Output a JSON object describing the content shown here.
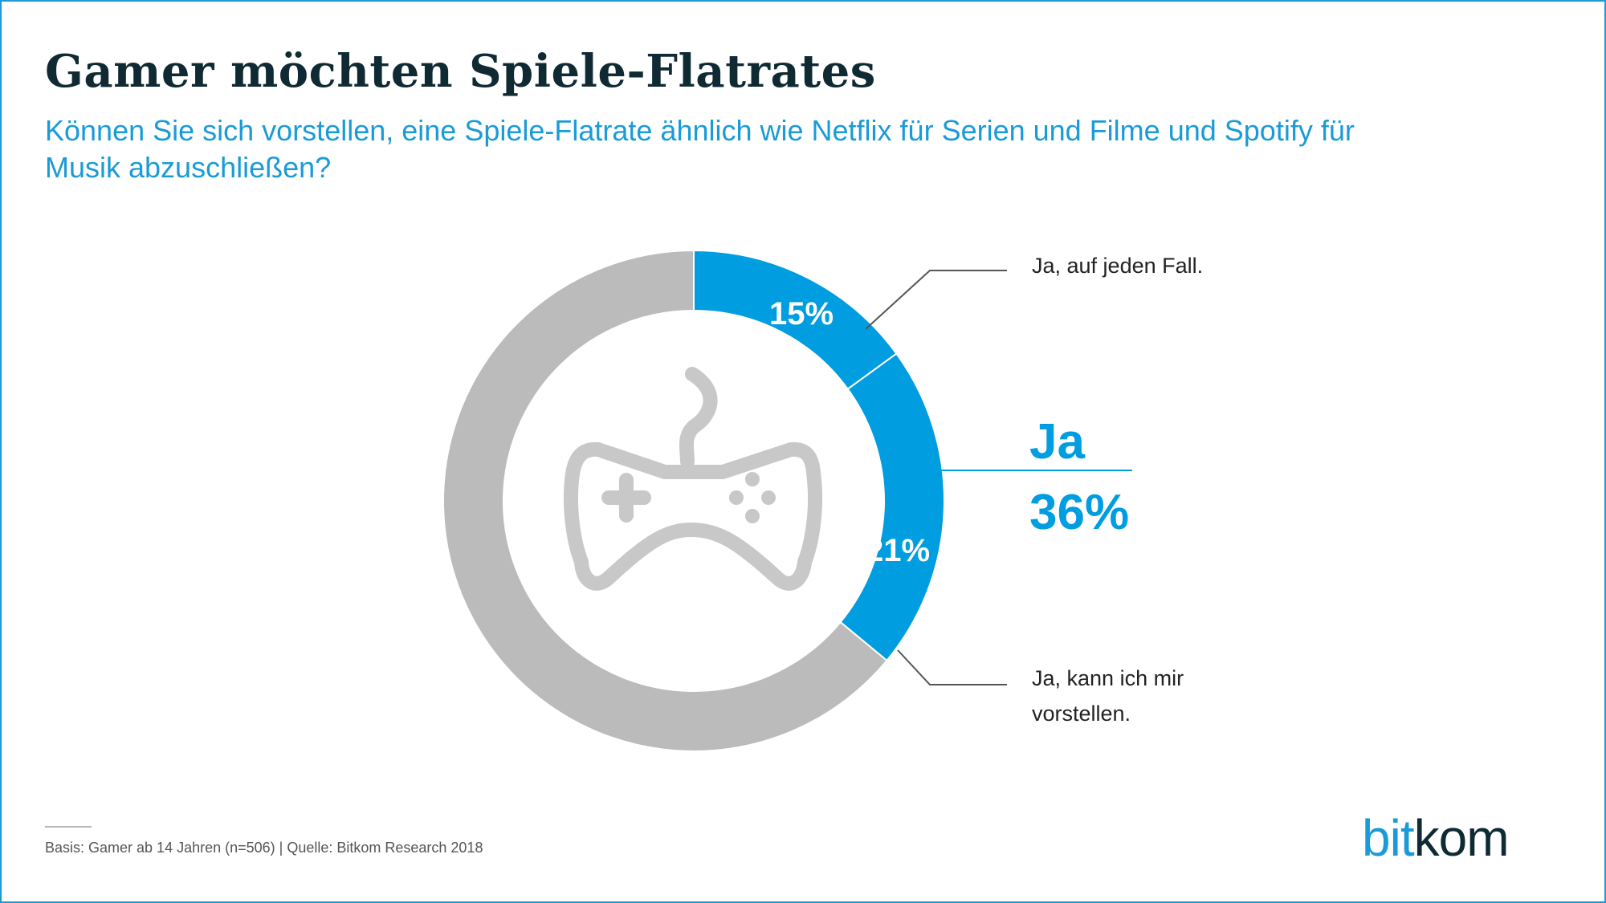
{
  "header": {
    "title": "Gamer möchten Spiele-Flatrates",
    "subtitle": "Können Sie sich vorstellen, eine Spiele-Flatrate ähnlich wie Netflix für Serien und Filme und Spotify für Musik abzuschließen?"
  },
  "chart_data": {
    "type": "pie",
    "donut": true,
    "slices": [
      {
        "label": "Ja, auf jeden Fall.",
        "value": 15,
        "value_label": "15%",
        "color": "#009de0"
      },
      {
        "label": "Ja, kann ich mir vorstellen.",
        "value": 21,
        "value_label": "21%",
        "color": "#009de0"
      },
      {
        "label": "",
        "value": 64,
        "value_label": "",
        "color": "#bbbbbb"
      }
    ],
    "summary": {
      "label": "Ja",
      "value_label": "36%"
    },
    "center_icon": "gamepad-icon"
  },
  "colors": {
    "accent": "#009de0",
    "rest": "#bbbbbb",
    "title": "#0f2a33",
    "frame": "#1a9bd7"
  },
  "footer": {
    "note": "Basis: Gamer ab 14 Jahren (n=506) | Quelle: Bitkom Research 2018"
  },
  "logo": {
    "part1": "bit",
    "part2": "kom"
  }
}
